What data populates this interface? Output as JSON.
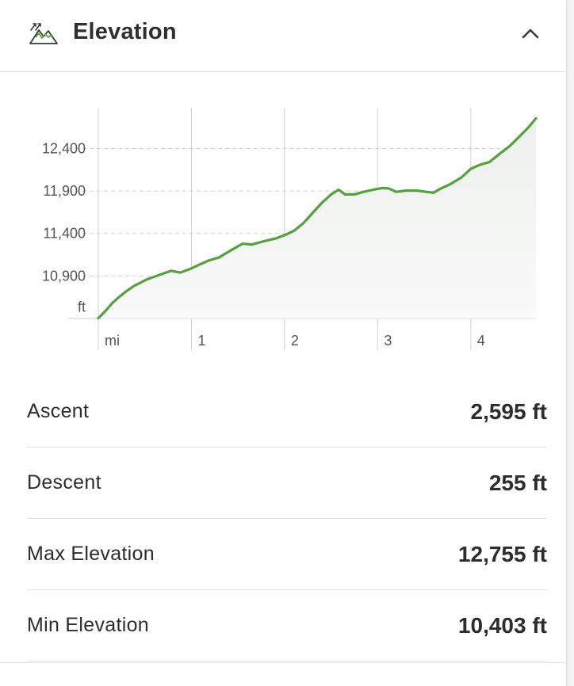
{
  "header": {
    "title": "Elevation",
    "icon": "mountain-chart-icon",
    "collapse_icon": "chevron-up-icon"
  },
  "colors": {
    "line": "#57a042",
    "fill_top": "#eff1ef",
    "grid": "#d0d0d0",
    "text": "#2d2d2d"
  },
  "chart_data": {
    "type": "area",
    "xlabel": "mi",
    "ylabel": "ft",
    "x_ticks": [
      0,
      1,
      2,
      3,
      4
    ],
    "x_tick_labels": [
      "mi",
      "1",
      "2",
      "3",
      "4"
    ],
    "y_ticks": [
      10900,
      11400,
      11900,
      12400
    ],
    "y_tick_labels": [
      "10,900",
      "11,400",
      "11,900",
      "12,400"
    ],
    "xlim": [
      0,
      4.7
    ],
    "ylim": [
      10400,
      12880
    ],
    "grid": true,
    "series": [
      {
        "values": [
          [
            0.0,
            10403
          ],
          [
            0.07,
            10480
          ],
          [
            0.15,
            10580
          ],
          [
            0.22,
            10650
          ],
          [
            0.3,
            10720
          ],
          [
            0.38,
            10780
          ],
          [
            0.45,
            10820
          ],
          [
            0.52,
            10860
          ],
          [
            0.6,
            10890
          ],
          [
            0.7,
            10930
          ],
          [
            0.78,
            10960
          ],
          [
            0.88,
            10940
          ],
          [
            0.98,
            10980
          ],
          [
            1.08,
            11030
          ],
          [
            1.18,
            11080
          ],
          [
            1.3,
            11120
          ],
          [
            1.42,
            11200
          ],
          [
            1.55,
            11280
          ],
          [
            1.65,
            11270
          ],
          [
            1.78,
            11310
          ],
          [
            1.9,
            11340
          ],
          [
            2.0,
            11380
          ],
          [
            2.1,
            11430
          ],
          [
            2.2,
            11520
          ],
          [
            2.3,
            11640
          ],
          [
            2.4,
            11760
          ],
          [
            2.5,
            11860
          ],
          [
            2.58,
            11915
          ],
          [
            2.65,
            11860
          ],
          [
            2.75,
            11860
          ],
          [
            2.85,
            11890
          ],
          [
            2.95,
            11915
          ],
          [
            3.05,
            11935
          ],
          [
            3.12,
            11930
          ],
          [
            3.2,
            11890
          ],
          [
            3.3,
            11905
          ],
          [
            3.42,
            11905
          ],
          [
            3.52,
            11890
          ],
          [
            3.6,
            11880
          ],
          [
            3.68,
            11930
          ],
          [
            3.78,
            11980
          ],
          [
            3.9,
            12060
          ],
          [
            4.0,
            12160
          ],
          [
            4.1,
            12210
          ],
          [
            4.2,
            12240
          ],
          [
            4.3,
            12330
          ],
          [
            4.42,
            12430
          ],
          [
            4.52,
            12540
          ],
          [
            4.62,
            12650
          ],
          [
            4.7,
            12755
          ]
        ]
      }
    ]
  },
  "stats": [
    {
      "label": "Ascent",
      "value": "2,595 ft"
    },
    {
      "label": "Descent",
      "value": "255 ft"
    },
    {
      "label": "Max Elevation",
      "value": "12,755 ft"
    },
    {
      "label": "Min Elevation",
      "value": "10,403 ft"
    }
  ]
}
